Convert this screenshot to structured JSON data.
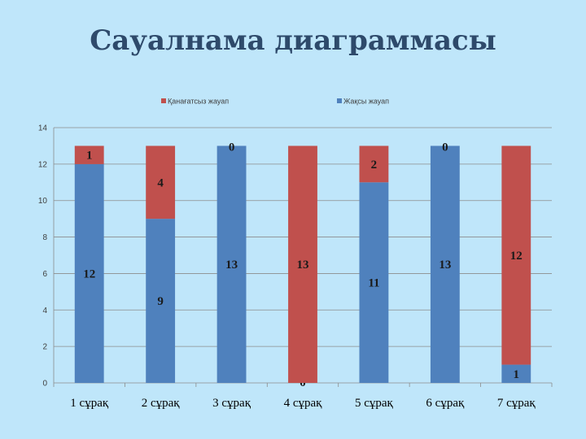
{
  "slide": {
    "title": "Сауалнама диаграммасы",
    "background": "#bfe6fa"
  },
  "chart_data": {
    "type": "bar",
    "stacked": true,
    "categories": [
      "1 сұрақ",
      "2 сұрақ",
      "3 сұрақ",
      "4 сұрақ",
      "5 сұрақ",
      "6 сұрақ",
      "7 сұрақ"
    ],
    "series": [
      {
        "name": "Жақсы жауап",
        "color": "#4f81bd",
        "values": [
          12,
          9,
          13,
          0,
          11,
          13,
          1
        ]
      },
      {
        "name": "Қанағатсыз жауап",
        "color": "#c0504d",
        "values": [
          1,
          4,
          0,
          13,
          2,
          0,
          12
        ]
      }
    ],
    "legend_order": [
      1,
      0
    ],
    "legend_position": "top",
    "ylim": [
      0,
      14
    ],
    "yticks": [
      0,
      2,
      4,
      6,
      8,
      10,
      12,
      14
    ],
    "grid": true,
    "data_labels": true
  }
}
